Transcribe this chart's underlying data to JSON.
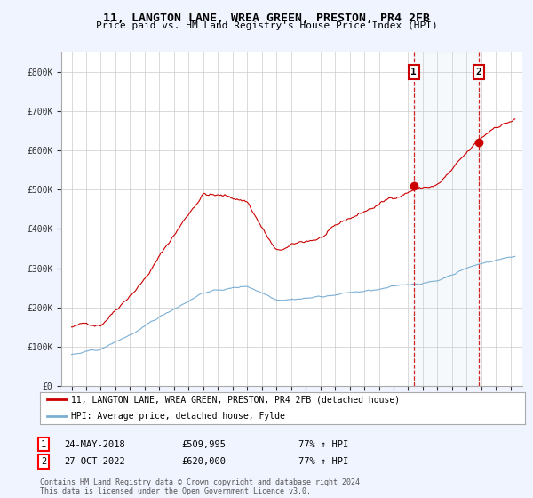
{
  "title": "11, LANGTON LANE, WREA GREEN, PRESTON, PR4 2FB",
  "subtitle": "Price paid vs. HM Land Registry's House Price Index (HPI)",
  "ylim": [
    0,
    850000
  ],
  "yticks": [
    0,
    100000,
    200000,
    300000,
    400000,
    500000,
    600000,
    700000,
    800000
  ],
  "ytick_labels": [
    "£0",
    "£100K",
    "£200K",
    "£300K",
    "£400K",
    "£500K",
    "£600K",
    "£700K",
    "£800K"
  ],
  "red_color": "#cc0000",
  "blue_color": "#7bafd4",
  "blue_fill": "#d8e8f5",
  "sale1_year": 2018.38,
  "sale1_value": 509995,
  "sale2_year": 2022.82,
  "sale2_value": 620000,
  "legend_red": "11, LANGTON LANE, WREA GREEN, PRESTON, PR4 2FB (detached house)",
  "legend_blue": "HPI: Average price, detached house, Fylde",
  "footnote": "Contains HM Land Registry data © Crown copyright and database right 2024.\nThis data is licensed under the Open Government Licence v3.0.",
  "background_color": "#f0f4ff",
  "plot_bg": "#ffffff",
  "grid_color": "#cccccc"
}
